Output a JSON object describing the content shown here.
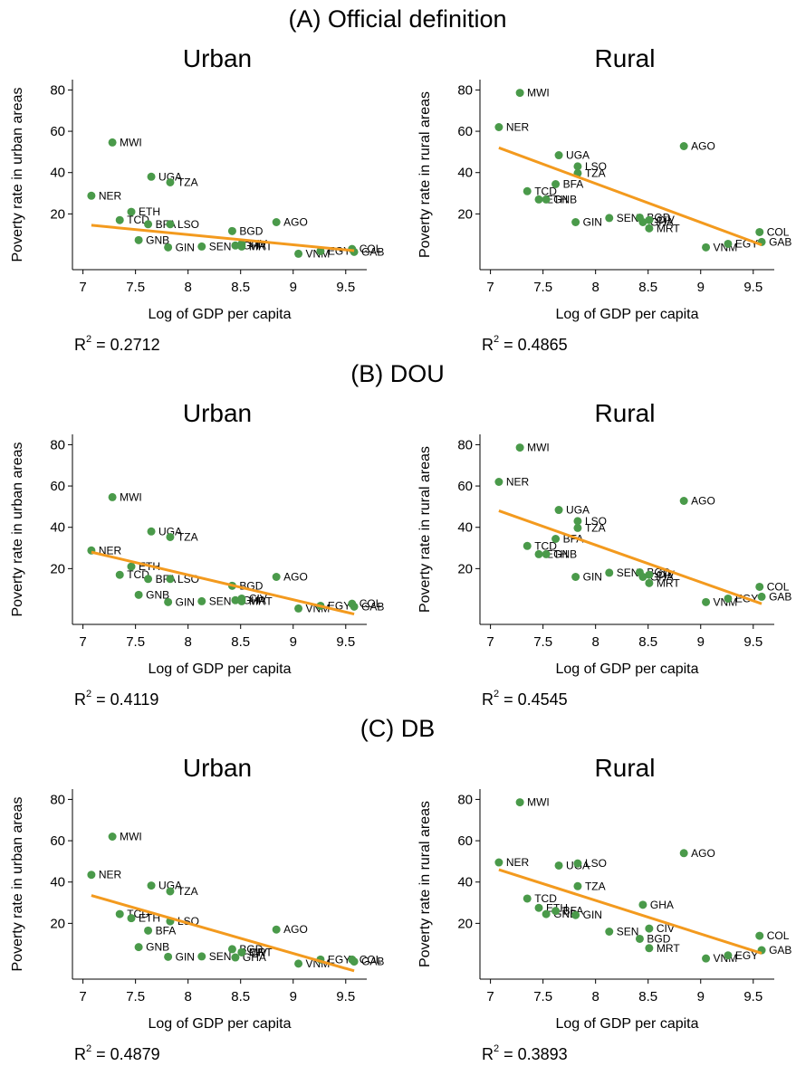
{
  "sections": [
    "(A) Official definition",
    "(B) DOU",
    "(C) DB"
  ],
  "chart_data": [
    {
      "type": "scatter",
      "title": "Urban",
      "ylabel": "Poverty rate in urban areas",
      "xlabel": "Log of GDP per capita",
      "xlim": [
        6.9,
        9.7
      ],
      "ylim": [
        -7,
        85
      ],
      "xticks": [
        7,
        7.5,
        8,
        8.5,
        9,
        9.5
      ],
      "yticks": [
        20,
        40,
        60,
        80
      ],
      "series": [
        {
          "color": "#4a9a4a",
          "labels": [
            "NER",
            "MWI",
            "TCD",
            "ETH",
            "GNB",
            "BFA",
            "UGA",
            "GIN",
            "TZA",
            "LSO",
            "SEN",
            "BGD",
            "GHA",
            "CIV",
            "MRT",
            "AGO",
            "VNM",
            "EGY",
            "COL",
            "GAB"
          ],
          "x": [
            7.08,
            7.28,
            7.35,
            7.46,
            7.53,
            7.62,
            7.65,
            7.81,
            7.83,
            7.83,
            8.13,
            8.42,
            8.45,
            8.51,
            8.51,
            8.84,
            9.05,
            9.26,
            9.56,
            9.58
          ],
          "values": [
            28.8,
            54.6,
            17,
            21,
            7.3,
            15,
            38,
            3.8,
            35.3,
            15,
            4.2,
            11.7,
            4.7,
            5.5,
            4.2,
            16,
            0.7,
            2,
            3,
            1.6
          ]
        }
      ],
      "fit": {
        "color": "#f39a1e",
        "x": [
          7.08,
          9.58
        ],
        "y": [
          14.5,
          2.2
        ]
      },
      "annotation": {
        "text": "R",
        "sup": "2",
        "rest": " = 0.2712"
      }
    },
    {
      "type": "scatter",
      "title": "Rural",
      "ylabel": "Poverty rate in rural areas",
      "xlabel": "Log of GDP per capita",
      "xlim": [
        6.9,
        9.7
      ],
      "ylim": [
        -7,
        85
      ],
      "xticks": [
        7,
        7.5,
        8,
        8.5,
        9,
        9.5
      ],
      "yticks": [
        20,
        40,
        60,
        80
      ],
      "series": [
        {
          "color": "#4a9a4a",
          "labels": [
            "NER",
            "MWI",
            "TCD",
            "ETH",
            "GNB",
            "BFA",
            "UGA",
            "GIN",
            "TZA",
            "LSO",
            "SEN",
            "BGD",
            "GHA",
            "CIV",
            "MRT",
            "AGO",
            "VNM",
            "EGY",
            "COL",
            "GAB"
          ],
          "x": [
            7.08,
            7.28,
            7.35,
            7.46,
            7.53,
            7.62,
            7.65,
            7.81,
            7.83,
            7.83,
            8.13,
            8.42,
            8.45,
            8.51,
            8.51,
            8.84,
            9.05,
            9.26,
            9.56,
            9.58
          ],
          "values": [
            62,
            78.6,
            31,
            27,
            27,
            34.4,
            48.4,
            16,
            39.7,
            43,
            18,
            18.2,
            16,
            17,
            13,
            52.8,
            3.8,
            5.5,
            11.2,
            6.4
          ]
        }
      ],
      "fit": {
        "color": "#f39a1e",
        "x": [
          7.08,
          9.58
        ],
        "y": [
          52,
          5
        ]
      },
      "annotation": {
        "text": "R",
        "sup": "2",
        "rest": " = 0.4865"
      }
    },
    {
      "type": "scatter",
      "title": "Urban",
      "ylabel": "Poverty rate in urban areas",
      "xlabel": "Log of GDP per capita",
      "xlim": [
        6.9,
        9.7
      ],
      "ylim": [
        -7,
        85
      ],
      "xticks": [
        7,
        7.5,
        8,
        8.5,
        9,
        9.5
      ],
      "yticks": [
        20,
        40,
        60,
        80
      ],
      "series": [
        {
          "color": "#4a9a4a",
          "labels": [
            "NER",
            "MWI",
            "TCD",
            "ETH",
            "GNB",
            "BFA",
            "UGA",
            "GIN",
            "TZA",
            "LSO",
            "SEN",
            "BGD",
            "GHA",
            "CIV",
            "MRT",
            "AGO",
            "VNM",
            "EGY",
            "COL",
            "GAB"
          ],
          "x": [
            7.08,
            7.28,
            7.35,
            7.46,
            7.53,
            7.62,
            7.65,
            7.81,
            7.83,
            7.83,
            8.13,
            8.42,
            8.45,
            8.51,
            8.51,
            8.84,
            9.05,
            9.26,
            9.56,
            9.58
          ],
          "values": [
            28.8,
            54.6,
            17,
            21,
            7.3,
            15,
            38,
            3.8,
            35.3,
            15,
            4.2,
            11.7,
            4.7,
            5.5,
            4.2,
            16,
            0.7,
            2,
            3,
            1.6
          ]
        }
      ],
      "fit": {
        "color": "#f39a1e",
        "x": [
          7.08,
          9.58
        ],
        "y": [
          28,
          -2
        ]
      },
      "annotation": {
        "text": "R",
        "sup": "2",
        "rest": " = 0.4119"
      }
    },
    {
      "type": "scatter",
      "title": "Rural",
      "ylabel": "Poverty rate in rural areas",
      "xlabel": "Log of GDP per capita",
      "xlim": [
        6.9,
        9.7
      ],
      "ylim": [
        -7,
        85
      ],
      "xticks": [
        7,
        7.5,
        8,
        8.5,
        9,
        9.5
      ],
      "yticks": [
        20,
        40,
        60,
        80
      ],
      "series": [
        {
          "color": "#4a9a4a",
          "labels": [
            "NER",
            "MWI",
            "TCD",
            "ETH",
            "GNB",
            "BFA",
            "UGA",
            "GIN",
            "TZA",
            "LSO",
            "SEN",
            "BGD",
            "GHA",
            "CIV",
            "MRT",
            "AGO",
            "VNM",
            "EGY",
            "COL",
            "GAB"
          ],
          "x": [
            7.08,
            7.28,
            7.35,
            7.46,
            7.53,
            7.62,
            7.65,
            7.81,
            7.83,
            7.83,
            8.13,
            8.42,
            8.45,
            8.51,
            8.51,
            8.84,
            9.05,
            9.26,
            9.56,
            9.58
          ],
          "values": [
            62,
            78.6,
            31,
            27,
            27,
            34.4,
            48.4,
            16,
            39.7,
            43,
            18,
            18.2,
            16,
            17,
            13,
            52.8,
            3.8,
            5.5,
            11.2,
            6.4
          ]
        }
      ],
      "fit": {
        "color": "#f39a1e",
        "x": [
          7.08,
          9.58
        ],
        "y": [
          48,
          3
        ]
      },
      "annotation": {
        "text": "R",
        "sup": "2",
        "rest": " = 0.4545"
      }
    },
    {
      "type": "scatter",
      "title": "Urban",
      "ylabel": "Poverty rate in urban areas",
      "xlabel": "Log of GDP per capita",
      "xlim": [
        6.9,
        9.7
      ],
      "ylim": [
        -7,
        85
      ],
      "xticks": [
        7,
        7.5,
        8,
        8.5,
        9,
        9.5
      ],
      "yticks": [
        20,
        40,
        60,
        80
      ],
      "series": [
        {
          "color": "#4a9a4a",
          "labels": [
            "NER",
            "MWI",
            "TCD",
            "ETH",
            "GNB",
            "BFA",
            "UGA",
            "GIN",
            "TZA",
            "LSO",
            "SEN",
            "BGD",
            "GHA",
            "CIV",
            "MRT",
            "AGO",
            "VNM",
            "EGY",
            "COL",
            "GAB"
          ],
          "x": [
            7.08,
            7.28,
            7.35,
            7.46,
            7.53,
            7.62,
            7.65,
            7.81,
            7.83,
            7.83,
            8.13,
            8.42,
            8.45,
            8.51,
            8.51,
            8.84,
            9.05,
            9.26,
            9.56,
            9.58
          ],
          "values": [
            43.5,
            62,
            24.5,
            22.5,
            8.5,
            16.5,
            38.3,
            3.8,
            35.5,
            21,
            4,
            7.5,
            3.5,
            6,
            6,
            17,
            0.5,
            2.5,
            2.5,
            1.5
          ]
        }
      ],
      "fit": {
        "color": "#f39a1e",
        "x": [
          7.08,
          9.58
        ],
        "y": [
          33.5,
          -3
        ]
      },
      "annotation": {
        "text": "R",
        "sup": "2",
        "rest": " = 0.4879"
      }
    },
    {
      "type": "scatter",
      "title": "Rural",
      "ylabel": "Poverty rate in rural areas",
      "xlabel": "Log of GDP per capita",
      "xlim": [
        6.9,
        9.7
      ],
      "ylim": [
        -7,
        85
      ],
      "xticks": [
        7,
        7.5,
        8,
        8.5,
        9,
        9.5
      ],
      "yticks": [
        20,
        40,
        60,
        80
      ],
      "series": [
        {
          "color": "#4a9a4a",
          "labels": [
            "NER",
            "MWI",
            "TCD",
            "ETH",
            "GNB",
            "BFA",
            "UGA",
            "GIN",
            "TZA",
            "LSO",
            "SEN",
            "BGD",
            "GHA",
            "CIV",
            "MRT",
            "AGO",
            "VNM",
            "EGY",
            "COL",
            "GAB"
          ],
          "x": [
            7.08,
            7.28,
            7.35,
            7.46,
            7.53,
            7.62,
            7.65,
            7.81,
            7.83,
            7.83,
            8.13,
            8.42,
            8.45,
            8.51,
            8.51,
            8.84,
            9.05,
            9.26,
            9.56,
            9.58
          ],
          "values": [
            49.5,
            78.6,
            32,
            27.5,
            24.5,
            26,
            48,
            24,
            38,
            49,
            16,
            12.5,
            29,
            17.5,
            8,
            54,
            3,
            4.5,
            14,
            7
          ]
        }
      ],
      "fit": {
        "color": "#f39a1e",
        "x": [
          7.08,
          9.58
        ],
        "y": [
          46,
          5.5
        ]
      },
      "annotation": {
        "text": "R",
        "sup": "2",
        "rest": " = 0.3893"
      }
    }
  ]
}
